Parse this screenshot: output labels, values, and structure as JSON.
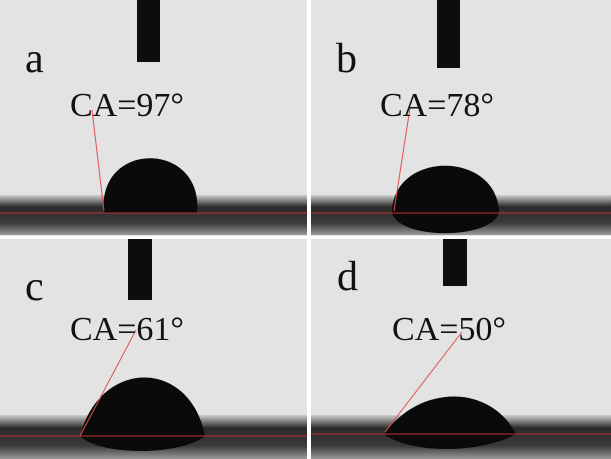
{
  "panels": [
    {
      "label": "a",
      "angle": "CA=97°"
    },
    {
      "label": "b",
      "angle": "CA=78°"
    },
    {
      "label": "c",
      "angle": "CA=61°"
    },
    {
      "label": "d",
      "angle": "CA=50°"
    }
  ]
}
